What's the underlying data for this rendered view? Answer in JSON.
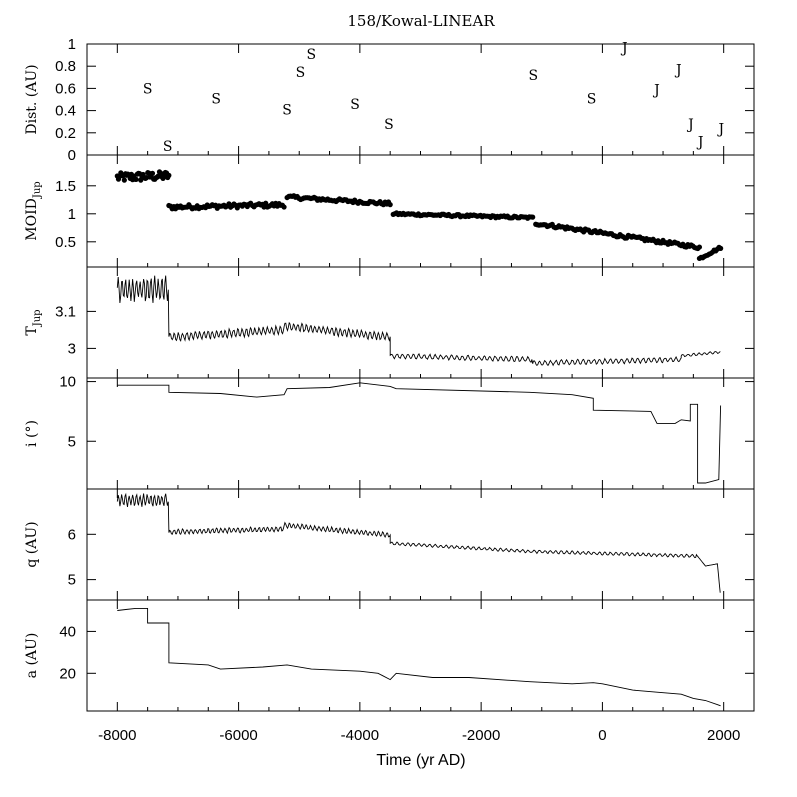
{
  "title": "158/Kowal-LINEAR",
  "xlabel": "Time (yr AD)",
  "xlim": [
    -8500,
    2500
  ],
  "xticks": [
    -8000,
    -6000,
    -4000,
    -2000,
    0,
    2000
  ],
  "xtick_labels": [
    "-8000",
    "-6000",
    "-4000",
    "-2000",
    "0",
    "2000"
  ],
  "chart_data": [
    {
      "type": "scatter",
      "panel": "dist",
      "ylabel": "Dist. (AU)",
      "ylim": [
        0,
        1
      ],
      "yticks": [
        0,
        0.2,
        0.4,
        0.6,
        0.8,
        1
      ],
      "ytick_labels": [
        "0",
        "0.2",
        "0.4",
        "0.6",
        "0.8",
        "1"
      ],
      "marker": "letter",
      "legend": "none",
      "points": [
        {
          "x": -7500,
          "y": 0.6,
          "label": "S"
        },
        {
          "x": -7170,
          "y": 0.08,
          "label": "S"
        },
        {
          "x": -6370,
          "y": 0.51,
          "label": "S"
        },
        {
          "x": -5200,
          "y": 0.41,
          "label": "S"
        },
        {
          "x": -4980,
          "y": 0.75,
          "label": "S"
        },
        {
          "x": -4800,
          "y": 0.91,
          "label": "S"
        },
        {
          "x": -4080,
          "y": 0.46,
          "label": "S"
        },
        {
          "x": -3520,
          "y": 0.28,
          "label": "S"
        },
        {
          "x": -1140,
          "y": 0.72,
          "label": "S"
        },
        {
          "x": -180,
          "y": 0.51,
          "label": "S"
        },
        {
          "x": 370,
          "y": 0.97,
          "label": "J"
        },
        {
          "x": 900,
          "y": 0.59,
          "label": "J"
        },
        {
          "x": 1260,
          "y": 0.77,
          "label": "J"
        },
        {
          "x": 1460,
          "y": 0.28,
          "label": "J"
        },
        {
          "x": 1620,
          "y": 0.12,
          "label": "J"
        },
        {
          "x": 1960,
          "y": 0.24,
          "label": "J"
        }
      ]
    },
    {
      "type": "scatter",
      "panel": "moid",
      "ylabel_main": "MOID",
      "ylabel_sub": "Jup",
      "ylim": [
        0.05,
        2.05
      ],
      "yticks": [
        0.5,
        1,
        1.5
      ],
      "ytick_labels": [
        "0.5",
        "1",
        "1.5"
      ],
      "marker": "filled-circle",
      "legend": "none",
      "segments": [
        {
          "x0": -8000,
          "x1": -7150,
          "y0": 1.65,
          "y1": 1.68,
          "jitter": 0.08,
          "n": 45
        },
        {
          "x0": -7150,
          "x1": -5250,
          "y0": 1.12,
          "y1": 1.16,
          "jitter": 0.04,
          "n": 70
        },
        {
          "x0": -5200,
          "x1": -3500,
          "y0": 1.3,
          "y1": 1.18,
          "jitter": 0.03,
          "n": 62
        },
        {
          "x0": -3450,
          "x1": -1150,
          "y0": 1.0,
          "y1": 0.93,
          "jitter": 0.02,
          "n": 84
        },
        {
          "x0": -1100,
          "x1": 1600,
          "y0": 0.83,
          "y1": 0.4,
          "jitter": 0.03,
          "n": 100
        },
        {
          "x0": 1600,
          "x1": 1950,
          "y0": 0.2,
          "y1": 0.4,
          "jitter": 0.02,
          "n": 14
        }
      ]
    },
    {
      "type": "line",
      "panel": "tjup",
      "ylabel_main": "T",
      "ylabel_sub": "Jup",
      "ylim": [
        2.92,
        3.22
      ],
      "yticks": [
        3,
        3.1
      ],
      "ytick_labels": [
        "3",
        "3.1"
      ],
      "legend": "none",
      "segments": [
        {
          "x0": -8000,
          "x1": -7150,
          "y0": 3.16,
          "y1": 3.16,
          "amp": 0.03,
          "period": 60
        },
        {
          "x0": -7150,
          "x1": -5250,
          "y0": 3.03,
          "y1": 3.05,
          "amp": 0.01,
          "period": 70
        },
        {
          "x0": -5250,
          "x1": -3500,
          "y0": 3.06,
          "y1": 3.03,
          "amp": 0.01,
          "period": 70
        },
        {
          "x0": -3500,
          "x1": -1150,
          "y0": 2.98,
          "y1": 2.97,
          "amp": 0.006,
          "period": 90
        },
        {
          "x0": -1150,
          "x1": 1300,
          "y0": 2.96,
          "y1": 2.97,
          "amp": 0.006,
          "period": 90
        },
        {
          "x0": 1300,
          "x1": 1950,
          "y0": 2.98,
          "y1": 2.99,
          "amp": 0.003,
          "period": 90
        }
      ]
    },
    {
      "type": "line",
      "panel": "incl",
      "ylabel": "i (°)",
      "ylim": [
        1,
        10.3
      ],
      "yticks": [
        5,
        10
      ],
      "ytick_labels": [
        "5",
        "10"
      ],
      "legend": "none",
      "points": [
        [
          -8000,
          9.7
        ],
        [
          -7150,
          9.7
        ],
        [
          -7150,
          9.1
        ],
        [
          -6300,
          9.0
        ],
        [
          -5700,
          8.7
        ],
        [
          -5250,
          8.9
        ],
        [
          -5200,
          9.4
        ],
        [
          -4500,
          9.5
        ],
        [
          -4000,
          9.9
        ],
        [
          -3500,
          9.6
        ],
        [
          -3400,
          9.4
        ],
        [
          -1200,
          9.1
        ],
        [
          -500,
          8.9
        ],
        [
          -150,
          8.6
        ],
        [
          -150,
          7.6
        ],
        [
          800,
          7.5
        ],
        [
          900,
          6.5
        ],
        [
          1200,
          6.5
        ],
        [
          1300,
          6.8
        ],
        [
          1450,
          6.7
        ],
        [
          1450,
          8.1
        ],
        [
          1570,
          8.1
        ],
        [
          1570,
          1.5
        ],
        [
          1700,
          1.5
        ],
        [
          1920,
          1.8
        ],
        [
          1950,
          8.0
        ]
      ]
    },
    {
      "type": "line",
      "panel": "q",
      "ylabel": "q (AU)",
      "ylim": [
        4.55,
        7.0
      ],
      "yticks": [
        5,
        6
      ],
      "ytick_labels": [
        "5",
        "6"
      ],
      "legend": "none",
      "segments": [
        {
          "x0": -8000,
          "x1": -7150,
          "y0": 6.75,
          "y1": 6.75,
          "amp": 0.12,
          "period": 60
        },
        {
          "x0": -7150,
          "x1": -5250,
          "y0": 6.05,
          "y1": 6.12,
          "amp": 0.05,
          "period": 70
        },
        {
          "x0": -5250,
          "x1": -3500,
          "y0": 6.2,
          "y1": 5.98,
          "amp": 0.05,
          "period": 70
        },
        {
          "x0": -3500,
          "x1": -1150,
          "y0": 5.8,
          "y1": 5.62,
          "amp": 0.03,
          "period": 90
        },
        {
          "x0": -1150,
          "x1": 1550,
          "y0": 5.62,
          "y1": 5.52,
          "amp": 0.03,
          "period": 90
        },
        {
          "x0": 1550,
          "x1": 1700,
          "y0": 5.55,
          "y1": 5.3,
          "amp": 0.0,
          "period": 90
        },
        {
          "x0": 1700,
          "x1": 1900,
          "y0": 5.3,
          "y1": 5.35,
          "amp": 0.0,
          "period": 90
        },
        {
          "x0": 1900,
          "x1": 1950,
          "y0": 5.3,
          "y1": 4.6,
          "amp": 0.0,
          "period": 90
        }
      ]
    },
    {
      "type": "line",
      "panel": "a",
      "ylabel": "a (AU)",
      "ylim": [
        2,
        55
      ],
      "yticks": [
        20,
        40
      ],
      "ytick_labels": [
        "20",
        "40"
      ],
      "legend": "none",
      "points": [
        [
          -8000,
          50
        ],
        [
          -7700,
          51
        ],
        [
          -7500,
          51
        ],
        [
          -7500,
          44
        ],
        [
          -7150,
          44
        ],
        [
          -7150,
          25
        ],
        [
          -6500,
          24
        ],
        [
          -6300,
          22
        ],
        [
          -5600,
          23
        ],
        [
          -5200,
          24
        ],
        [
          -4800,
          22
        ],
        [
          -4000,
          21
        ],
        [
          -3700,
          20
        ],
        [
          -3500,
          17
        ],
        [
          -3400,
          20
        ],
        [
          -2800,
          18
        ],
        [
          -2200,
          18
        ],
        [
          -1200,
          16
        ],
        [
          -500,
          15
        ],
        [
          -150,
          15.5
        ],
        [
          0,
          15
        ],
        [
          500,
          12
        ],
        [
          900,
          11
        ],
        [
          1300,
          10
        ],
        [
          1500,
          8
        ],
        [
          1700,
          7
        ],
        [
          1900,
          5
        ],
        [
          1950,
          4.5
        ]
      ]
    }
  ]
}
